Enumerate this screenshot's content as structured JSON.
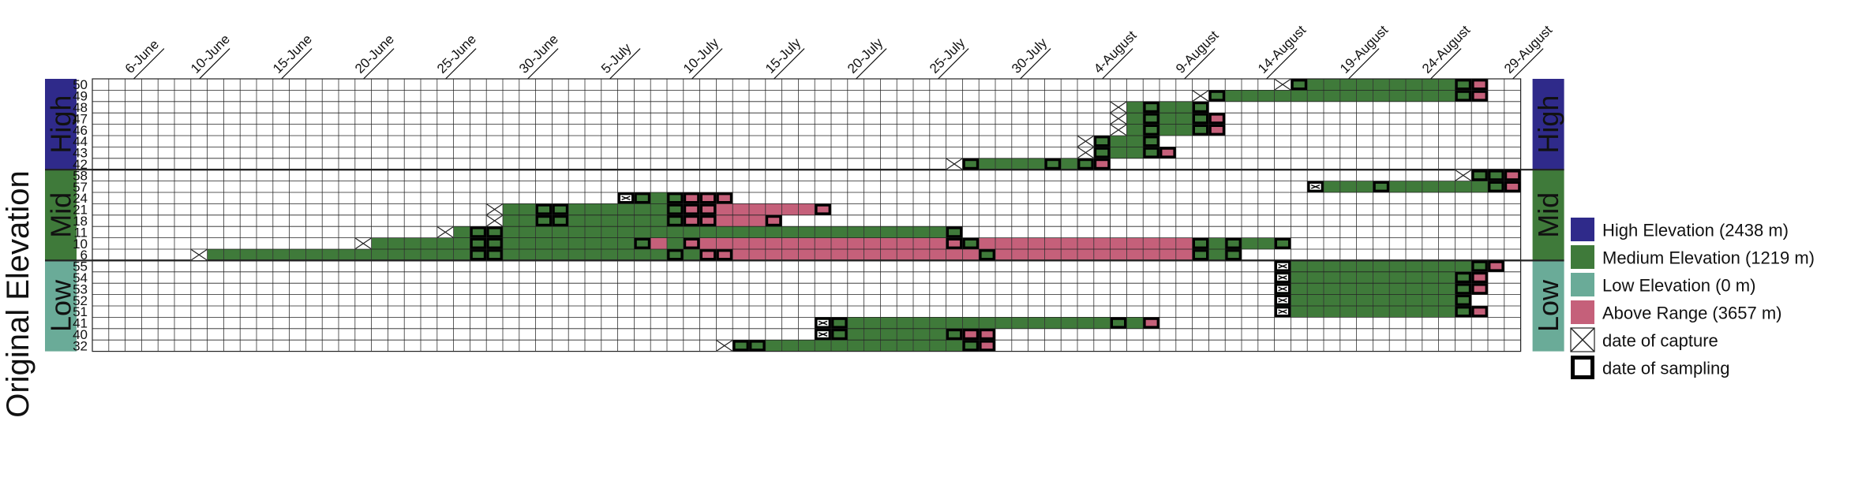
{
  "chart_data": {
    "type": "heatmap",
    "title": "",
    "ylabel": "Original Elevation",
    "xlabel": "",
    "start_date": "2014-06-03",
    "num_days": 87,
    "date_ticks": [
      {
        "label": "6-June",
        "day": 3
      },
      {
        "label": "10-June",
        "day": 7
      },
      {
        "label": "15-June",
        "day": 12
      },
      {
        "label": "20-June",
        "day": 17
      },
      {
        "label": "25-June",
        "day": 22
      },
      {
        "label": "30-June",
        "day": 27
      },
      {
        "label": "5-July",
        "day": 32
      },
      {
        "label": "10-July",
        "day": 37
      },
      {
        "label": "15-July",
        "day": 42
      },
      {
        "label": "20-July",
        "day": 47
      },
      {
        "label": "25-July",
        "day": 52
      },
      {
        "label": "30-July",
        "day": 57
      },
      {
        "label": "4-August",
        "day": 62
      },
      {
        "label": "9-August",
        "day": 67
      },
      {
        "label": "14-August",
        "day": 72
      },
      {
        "label": "19-August",
        "day": 77
      },
      {
        "label": "24-August",
        "day": 82
      },
      {
        "label": "29-August",
        "day": 87
      }
    ],
    "groups": [
      {
        "name": "High",
        "color": "#2f2a8a",
        "rows": [
          "50",
          "49",
          "48",
          "47",
          "46",
          "44",
          "43",
          "42"
        ]
      },
      {
        "name": "Mid",
        "color": "#3f7a3a",
        "rows": [
          "58",
          "57",
          "24",
          "21",
          "18",
          "11",
          "10",
          "6"
        ]
      },
      {
        "name": "Low",
        "color": "#6aab98",
        "rows": [
          "55",
          "54",
          "53",
          "52",
          "51",
          "41",
          "40",
          "32"
        ]
      }
    ],
    "individuals": [
      {
        "id": "50",
        "capture": 72,
        "segments": [
          {
            "from": 72,
            "to": 83,
            "state": "medium"
          },
          {
            "from": 84,
            "to": 84,
            "state": "above"
          }
        ],
        "sampling": [
          73,
          83,
          84
        ]
      },
      {
        "id": "49",
        "capture": 67,
        "segments": [
          {
            "from": 67,
            "to": 83,
            "state": "medium"
          },
          {
            "from": 84,
            "to": 84,
            "state": "above"
          }
        ],
        "sampling": [
          68,
          83,
          84
        ]
      },
      {
        "id": "48",
        "capture": 62,
        "segments": [
          {
            "from": 62,
            "to": 67,
            "state": "medium"
          }
        ],
        "sampling": [
          64,
          67
        ]
      },
      {
        "id": "47",
        "capture": 62,
        "segments": [
          {
            "from": 62,
            "to": 67,
            "state": "medium"
          },
          {
            "from": 68,
            "to": 68,
            "state": "above"
          }
        ],
        "sampling": [
          64,
          67,
          68
        ]
      },
      {
        "id": "46",
        "capture": 62,
        "segments": [
          {
            "from": 62,
            "to": 67,
            "state": "medium"
          },
          {
            "from": 68,
            "to": 68,
            "state": "above"
          }
        ],
        "sampling": [
          64,
          67,
          68
        ]
      },
      {
        "id": "44",
        "capture": 60,
        "segments": [
          {
            "from": 60,
            "to": 64,
            "state": "medium"
          }
        ],
        "sampling": [
          61,
          64
        ]
      },
      {
        "id": "43",
        "capture": 60,
        "segments": [
          {
            "from": 60,
            "to": 64,
            "state": "medium"
          },
          {
            "from": 65,
            "to": 65,
            "state": "above"
          }
        ],
        "sampling": [
          61,
          64,
          65
        ]
      },
      {
        "id": "42",
        "capture": 52,
        "segments": [
          {
            "from": 52,
            "to": 60,
            "state": "medium"
          },
          {
            "from": 61,
            "to": 61,
            "state": "above"
          }
        ],
        "sampling": [
          53,
          58,
          60,
          61
        ]
      },
      {
        "id": "58",
        "capture": 83,
        "segments": [
          {
            "from": 83,
            "to": 85,
            "state": "medium"
          },
          {
            "from": 86,
            "to": 86,
            "state": "above"
          }
        ],
        "sampling": [
          84,
          85,
          86
        ]
      },
      {
        "id": "57",
        "capture": 74,
        "segments": [
          {
            "from": 74,
            "to": 85,
            "state": "medium"
          },
          {
            "from": 86,
            "to": 86,
            "state": "above"
          }
        ],
        "sampling": [
          74,
          78,
          85,
          86
        ]
      },
      {
        "id": "24",
        "capture": 32,
        "segments": [
          {
            "from": 32,
            "to": 35,
            "state": "medium"
          },
          {
            "from": 36,
            "to": 38,
            "state": "above"
          }
        ],
        "sampling": [
          32,
          33,
          35,
          36,
          37,
          38
        ]
      },
      {
        "id": "21",
        "capture": 24,
        "segments": [
          {
            "from": 24,
            "to": 35,
            "state": "medium"
          },
          {
            "from": 36,
            "to": 44,
            "state": "above"
          }
        ],
        "sampling": [
          27,
          28,
          35,
          36,
          37,
          44
        ]
      },
      {
        "id": "18",
        "capture": 24,
        "segments": [
          {
            "from": 24,
            "to": 35,
            "state": "medium"
          },
          {
            "from": 36,
            "to": 41,
            "state": "above"
          }
        ],
        "sampling": [
          27,
          28,
          35,
          36,
          37,
          41
        ]
      },
      {
        "id": "11",
        "capture": 21,
        "segments": [
          {
            "from": 21,
            "to": 52,
            "state": "medium"
          }
        ],
        "sampling": [
          23,
          24,
          52
        ]
      },
      {
        "id": "10",
        "capture": 16,
        "segments": [
          {
            "from": 16,
            "to": 33,
            "state": "medium"
          },
          {
            "from": 34,
            "to": 34,
            "state": "above"
          },
          {
            "from": 35,
            "to": 35,
            "state": "medium"
          },
          {
            "from": 36,
            "to": 52,
            "state": "above"
          },
          {
            "from": 53,
            "to": 53,
            "state": "medium"
          },
          {
            "from": 54,
            "to": 66,
            "state": "above"
          },
          {
            "from": 67,
            "to": 72,
            "state": "medium"
          }
        ],
        "sampling": [
          23,
          24,
          33,
          36,
          52,
          53,
          67,
          69,
          72
        ]
      },
      {
        "id": "6",
        "capture": 6,
        "segments": [
          {
            "from": 6,
            "to": 34,
            "state": "medium"
          },
          {
            "from": 35,
            "to": 36,
            "state": "medium"
          },
          {
            "from": 37,
            "to": 53,
            "state": "above"
          },
          {
            "from": 54,
            "to": 54,
            "state": "medium"
          },
          {
            "from": 55,
            "to": 66,
            "state": "above"
          },
          {
            "from": 67,
            "to": 69,
            "state": "medium"
          }
        ],
        "sampling": [
          23,
          24,
          35,
          37,
          38,
          54,
          67,
          69
        ]
      },
      {
        "id": "55",
        "capture": 72,
        "segments": [
          {
            "from": 72,
            "to": 84,
            "state": "medium"
          },
          {
            "from": 85,
            "to": 85,
            "state": "above"
          }
        ],
        "sampling": [
          72,
          84,
          85
        ]
      },
      {
        "id": "54",
        "capture": 72,
        "segments": [
          {
            "from": 72,
            "to": 83,
            "state": "medium"
          },
          {
            "from": 84,
            "to": 84,
            "state": "above"
          }
        ],
        "sampling": [
          72,
          83,
          84
        ]
      },
      {
        "id": "53",
        "capture": 72,
        "segments": [
          {
            "from": 72,
            "to": 83,
            "state": "medium"
          },
          {
            "from": 84,
            "to": 84,
            "state": "above"
          }
        ],
        "sampling": [
          72,
          83,
          84
        ]
      },
      {
        "id": "52",
        "capture": 72,
        "segments": [
          {
            "from": 72,
            "to": 83,
            "state": "medium"
          }
        ],
        "sampling": [
          72,
          83
        ]
      },
      {
        "id": "51",
        "capture": 72,
        "segments": [
          {
            "from": 72,
            "to": 83,
            "state": "medium"
          },
          {
            "from": 84,
            "to": 84,
            "state": "above"
          }
        ],
        "sampling": [
          72,
          83,
          84
        ]
      },
      {
        "id": "41",
        "capture": 44,
        "segments": [
          {
            "from": 44,
            "to": 63,
            "state": "medium"
          },
          {
            "from": 64,
            "to": 64,
            "state": "above"
          }
        ],
        "sampling": [
          44,
          45,
          62,
          64
        ]
      },
      {
        "id": "40",
        "capture": 44,
        "segments": [
          {
            "from": 44,
            "to": 52,
            "state": "medium"
          },
          {
            "from": 53,
            "to": 54,
            "state": "above"
          }
        ],
        "sampling": [
          44,
          45,
          52,
          53,
          54
        ]
      },
      {
        "id": "32",
        "capture": 38,
        "segments": [
          {
            "from": 38,
            "to": 53,
            "state": "medium"
          },
          {
            "from": 54,
            "to": 54,
            "state": "above"
          }
        ],
        "sampling": [
          39,
          40,
          53,
          54
        ]
      }
    ],
    "states": {
      "medium": "#3f7a3a",
      "above": "#c5607a"
    },
    "legend": {
      "placement": "right",
      "items": [
        {
          "label": "High Elevation (2438 m)",
          "color": "#2f2a8a",
          "kind": "swatch"
        },
        {
          "label": "Medium Elevation (1219 m)",
          "color": "#3f7a3a",
          "kind": "swatch"
        },
        {
          "label": "Low Elevation (0 m)",
          "color": "#6aab98",
          "kind": "swatch"
        },
        {
          "label": "Above Range (3657 m)",
          "color": "#c5607a",
          "kind": "swatch"
        },
        {
          "label": "date of capture",
          "color": "#000000",
          "kind": "cross"
        },
        {
          "label": "date of sampling",
          "color": "#000000",
          "kind": "box"
        }
      ]
    }
  }
}
